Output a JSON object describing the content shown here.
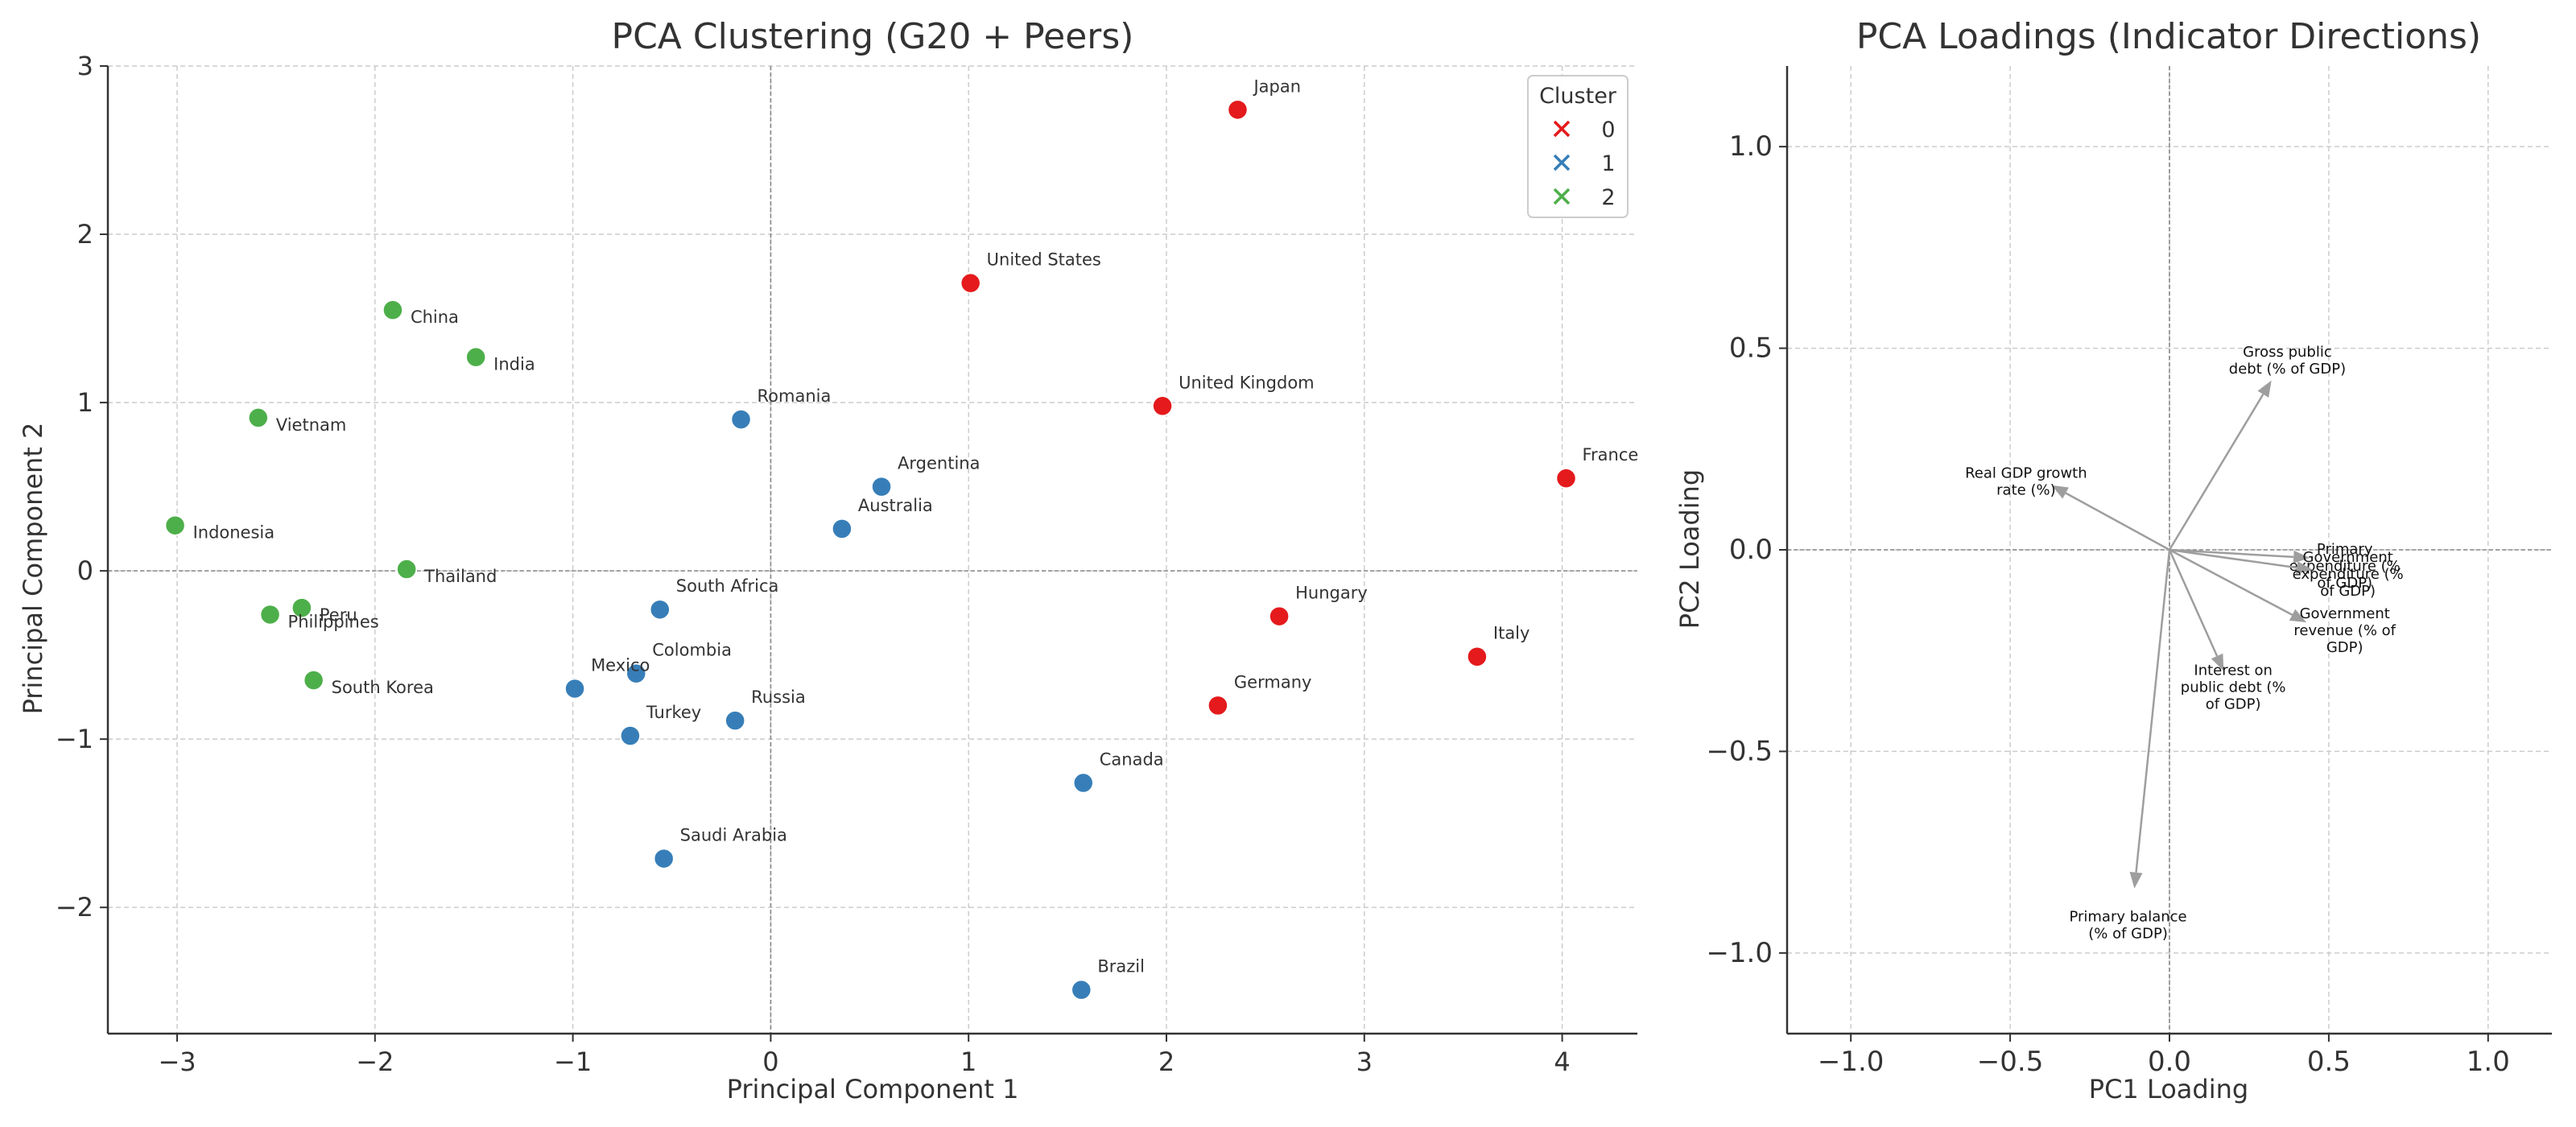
{
  "chart_data": [
    {
      "type": "scatter",
      "title": "PCA Clustering (G20 + Peers)",
      "xlabel": "Principal Component 1",
      "ylabel": "Principal Component 2",
      "xlim": [
        -3.35,
        4.38
      ],
      "ylim": [
        -2.75,
        3.0
      ],
      "xticks": [
        -3,
        -2,
        -1,
        0,
        1,
        2,
        3,
        4
      ],
      "yticks": [
        -2,
        -1,
        0,
        1,
        2,
        3
      ],
      "xtick_labels": [
        "−3",
        "−2",
        "−1",
        "0",
        "1",
        "2",
        "3",
        "4"
      ],
      "ytick_labels": [
        "−2",
        "−1",
        "0",
        "1",
        "2",
        "3"
      ],
      "grid": true,
      "legend": {
        "title": "Cluster",
        "placement": "top-right",
        "entries": [
          {
            "label": "0",
            "color": "#e41a1c"
          },
          {
            "label": "1",
            "color": "#377eb8"
          },
          {
            "label": "2",
            "color": "#4daf4a"
          }
        ]
      },
      "cluster_colors": {
        "0": "#e41a1c",
        "1": "#377eb8",
        "2": "#4daf4a"
      },
      "points": [
        {
          "label": "Japan",
          "x": 2.36,
          "y": 2.74,
          "cluster": 0
        },
        {
          "label": "United States",
          "x": 1.01,
          "y": 1.71,
          "cluster": 0
        },
        {
          "label": "United Kingdom",
          "x": 1.98,
          "y": 0.98,
          "cluster": 0
        },
        {
          "label": "France",
          "x": 4.02,
          "y": 0.55,
          "cluster": 0
        },
        {
          "label": "Hungary",
          "x": 2.57,
          "y": -0.27,
          "cluster": 0
        },
        {
          "label": "Italy",
          "x": 3.57,
          "y": -0.51,
          "cluster": 0
        },
        {
          "label": "Germany",
          "x": 2.26,
          "y": -0.8,
          "cluster": 0
        },
        {
          "label": "Romania",
          "x": -0.15,
          "y": 0.9,
          "cluster": 1
        },
        {
          "label": "Argentina",
          "x": 0.56,
          "y": 0.5,
          "cluster": 1
        },
        {
          "label": "Australia",
          "x": 0.36,
          "y": 0.25,
          "cluster": 1
        },
        {
          "label": "South Africa",
          "x": -0.56,
          "y": -0.23,
          "cluster": 1
        },
        {
          "label": "Colombia",
          "x": -0.68,
          "y": -0.61,
          "cluster": 1
        },
        {
          "label": "Mexico",
          "x": -0.99,
          "y": -0.7,
          "cluster": 1
        },
        {
          "label": "Russia",
          "x": -0.18,
          "y": -0.89,
          "cluster": 1
        },
        {
          "label": "Turkey",
          "x": -0.71,
          "y": -0.98,
          "cluster": 1
        },
        {
          "label": "Canada",
          "x": 1.58,
          "y": -1.26,
          "cluster": 1
        },
        {
          "label": "Saudi Arabia",
          "x": -0.54,
          "y": -1.71,
          "cluster": 1
        },
        {
          "label": "Brazil",
          "x": 1.57,
          "y": -2.49,
          "cluster": 1
        },
        {
          "label": "China",
          "x": -1.91,
          "y": 1.55,
          "cluster": 2
        },
        {
          "label": "India",
          "x": -1.49,
          "y": 1.27,
          "cluster": 2
        },
        {
          "label": "Vietnam",
          "x": -2.59,
          "y": 0.91,
          "cluster": 2
        },
        {
          "label": "Indonesia",
          "x": -3.01,
          "y": 0.27,
          "cluster": 2
        },
        {
          "label": "Thailand",
          "x": -1.84,
          "y": 0.01,
          "cluster": 2
        },
        {
          "label": "Peru",
          "x": -2.37,
          "y": -0.22,
          "cluster": 2
        },
        {
          "label": "Philippines",
          "x": -2.53,
          "y": -0.26,
          "cluster": 2
        },
        {
          "label": "South Korea",
          "x": -2.31,
          "y": -0.65,
          "cluster": 2
        }
      ]
    },
    {
      "type": "vector",
      "title": "PCA Loadings (Indicator Directions)",
      "xlabel": "PC1 Loading",
      "ylabel": "PC2 Loading",
      "xlim": [
        -1.2,
        1.2
      ],
      "ylim": [
        -1.2,
        1.2
      ],
      "xticks": [
        -1.0,
        -0.5,
        0.0,
        0.5,
        1.0
      ],
      "yticks": [
        -1.0,
        -0.5,
        0.0,
        0.5,
        1.0
      ],
      "xtick_labels": [
        "−1.0",
        "−0.5",
        "0.0",
        "0.5",
        "1.0"
      ],
      "ytick_labels": [
        "−1.0",
        "−0.5",
        "0.0",
        "0.5",
        "1.0"
      ],
      "grid": true,
      "vectors": [
        {
          "label_lines": [
            "Gross public",
            "debt (% of GDP)"
          ],
          "x": 0.32,
          "y": 0.42,
          "label_x": 0.37,
          "label_y": 0.47
        },
        {
          "label_lines": [
            "Real GDP growth",
            "rate (%)"
          ],
          "x": -0.37,
          "y": 0.16,
          "label_x": -0.45,
          "label_y": 0.17
        },
        {
          "label_lines": [
            "Primary",
            "expenditure (%",
            "of GDP)"
          ],
          "x": 0.44,
          "y": -0.02,
          "label_x": 0.55,
          "label_y": -0.04
        },
        {
          "label_lines": [
            "Government",
            "expenditure (%",
            "of GDP)"
          ],
          "x": 0.45,
          "y": -0.05,
          "label_x": 0.56,
          "label_y": -0.06
        },
        {
          "label_lines": [
            "Government",
            "revenue (% of",
            "GDP)"
          ],
          "x": 0.43,
          "y": -0.18,
          "label_x": 0.55,
          "label_y": -0.2
        },
        {
          "label_lines": [
            "Interest on",
            "public debt (%",
            "of GDP)"
          ],
          "x": 0.17,
          "y": -0.3,
          "label_x": 0.2,
          "label_y": -0.34
        },
        {
          "label_lines": [
            "Primary balance",
            "(% of GDP)"
          ],
          "x": -0.11,
          "y": -0.84,
          "label_x": -0.13,
          "label_y": -0.93
        }
      ]
    }
  ]
}
